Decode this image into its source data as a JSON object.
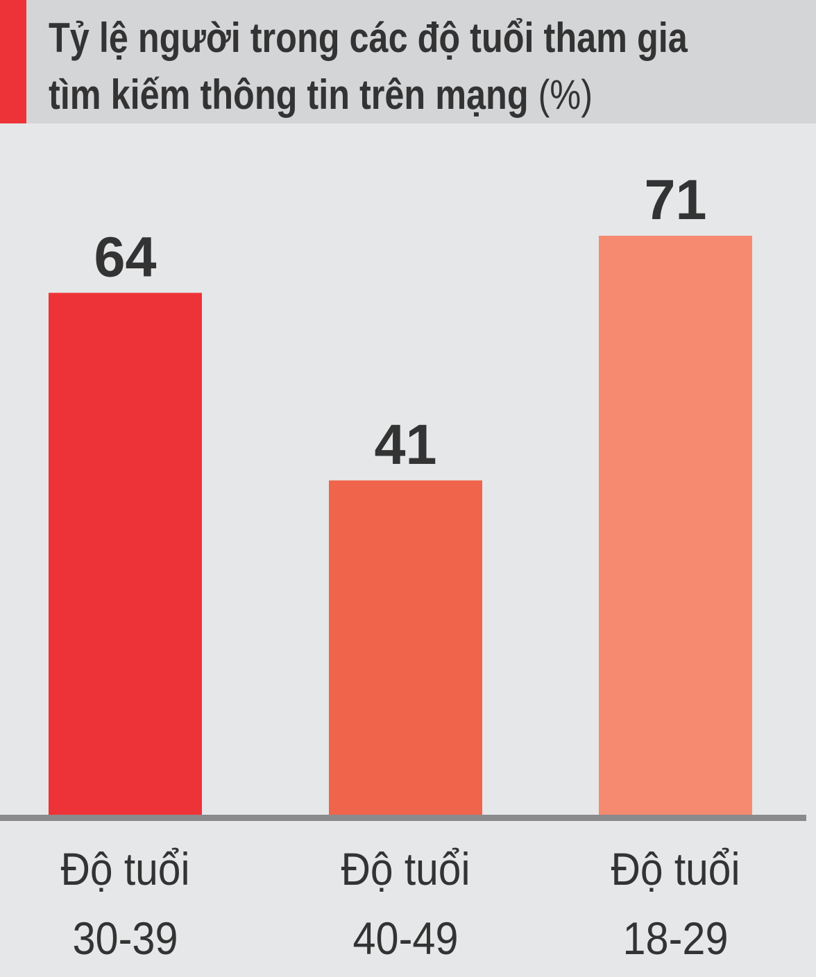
{
  "header": {
    "accent_color": "#ee3338",
    "background_color": "#d4d5d7"
  },
  "chart_data": {
    "type": "bar",
    "title_lines": [
      "Tỷ lệ người trong các độ tuổi tham gia",
      "tìm kiếm thông tin trên mạng"
    ],
    "unit": "(%)",
    "categories": [
      [
        "Độ tuổi",
        "30-39"
      ],
      [
        "Độ tuổi",
        "40-49"
      ],
      [
        "Độ tuổi",
        "18-29"
      ]
    ],
    "values": [
      64,
      41,
      71
    ],
    "bar_colors": [
      "#ee3338",
      "#f0644b",
      "#f58a70"
    ],
    "baseline_color": "#8a8a8c",
    "ylim": [
      0,
      71
    ],
    "grid": false,
    "legend": "none"
  }
}
